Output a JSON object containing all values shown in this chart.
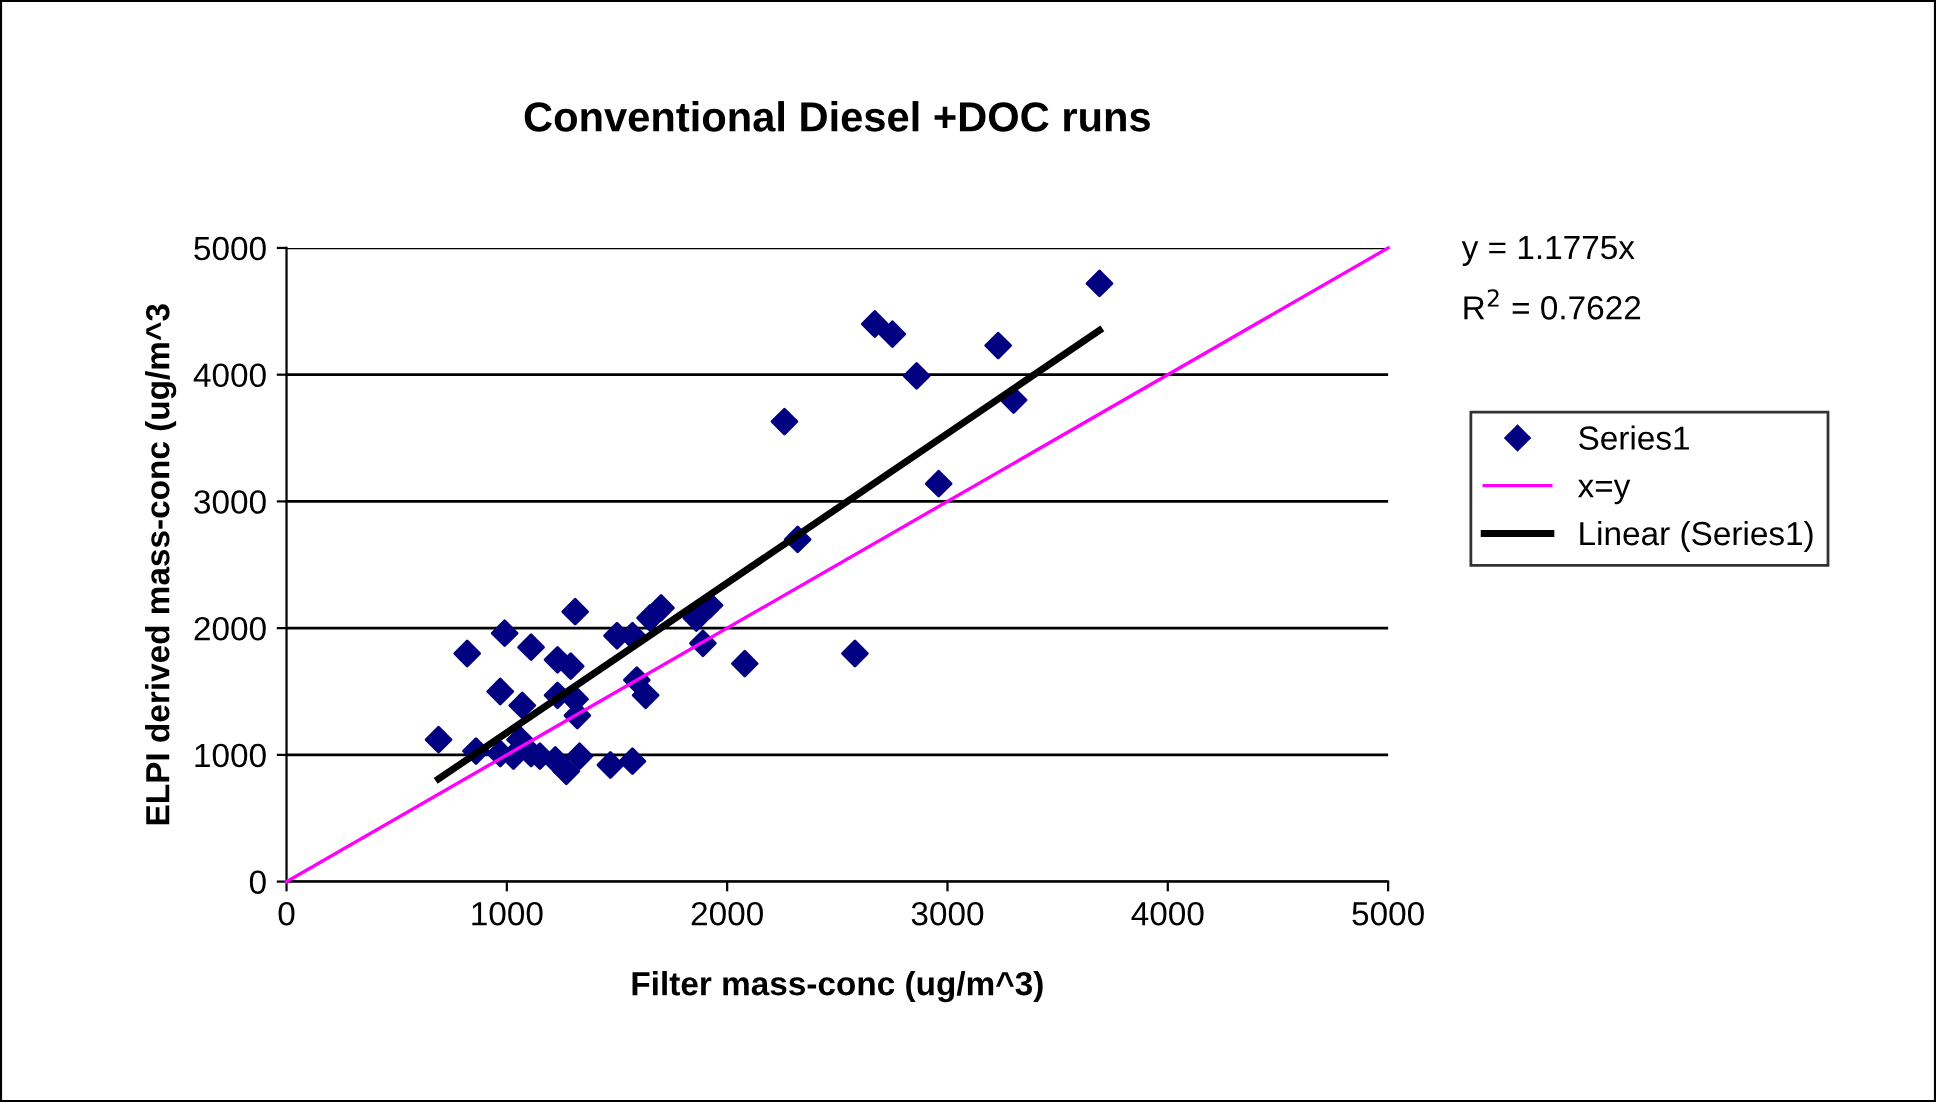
{
  "chart_data": {
    "type": "scatter",
    "title": "Conventional Diesel +DOC runs",
    "xlabel": "Filter mass-conc (ug/m^3)",
    "ylabel": "ELPI derived mass-conc (ug/m^3",
    "annotations": [
      "y = 1.1775x",
      "R$^{2}$ = 0.7622"
    ],
    "xlim": [
      0,
      5000
    ],
    "ylim": [
      0,
      5000
    ],
    "xticks": [
      0,
      1000,
      2000,
      3000,
      4000,
      5000
    ],
    "yticks": [
      0,
      1000,
      2000,
      3000,
      4000,
      5000
    ],
    "grid": "y",
    "legend": "right",
    "marker": "diamond",
    "series": [
      {
        "name": "Series1",
        "color": "#000080",
        "x": [
          690,
          820,
          990,
          1110,
          1310,
          970,
          1070,
          1230,
          1290,
          1230,
          1310,
          1320,
          860,
          970,
          1060,
          1030,
          1110,
          1150,
          1220,
          1270,
          1330,
          1470,
          1570,
          1500,
          1570,
          1650,
          1700,
          1590,
          1630,
          1860,
          1920,
          1890,
          2080,
          2260,
          2670,
          2750,
          2860,
          3230,
          3690,
          3300,
          2960,
          2320,
          2580
        ],
        "values": [
          1120,
          1800,
          1960,
          1850,
          2130,
          1500,
          1390,
          1750,
          1700,
          1470,
          1440,
          1310,
          1030,
          1010,
          1120,
          990,
          1010,
          990,
          960,
          870,
          990,
          920,
          950,
          1940,
          1940,
          2080,
          2160,
          1590,
          1470,
          2080,
          2180,
          1880,
          1720,
          3630,
          4400,
          4320,
          3990,
          4230,
          4720,
          3800,
          3140,
          2700,
          1800
        ]
      },
      {
        "name": "x=y",
        "type": "line",
        "color": "#ff00ff",
        "marker": "none",
        "x": [
          0,
          5000
        ],
        "values": [
          0,
          5000
        ]
      },
      {
        "name": "Linear (Series1)",
        "type": "line",
        "color": "#000000",
        "marker": "none",
        "x": [
          690,
          3690
        ],
        "values": [
          810,
          4350
        ]
      }
    ]
  }
}
